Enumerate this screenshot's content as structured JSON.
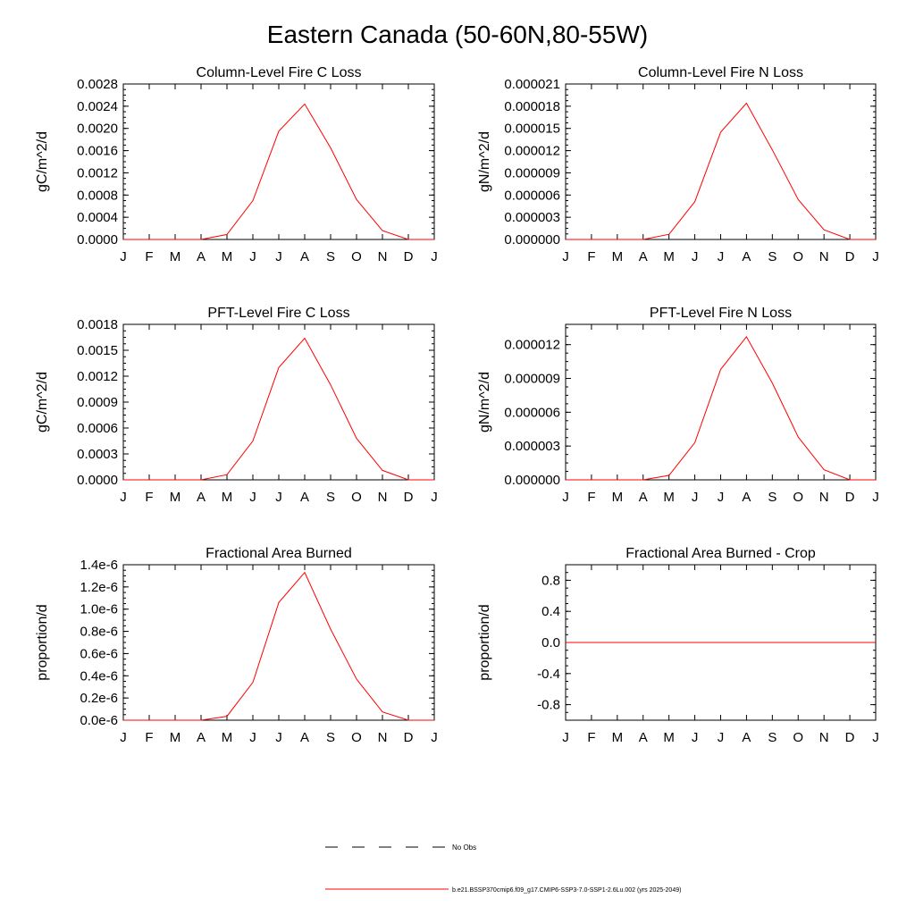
{
  "figure": {
    "title": "Eastern Canada (50-60N,80-55W)"
  },
  "colors": {
    "model_line": "#ff0000",
    "obs_line": "#000000",
    "axis": "#000000"
  },
  "legend": {
    "placement": "bottom-center",
    "entries": [
      {
        "label": "No Obs",
        "style": "dashed",
        "color": "#000000"
      },
      {
        "label": "b.e21.BSSP370cmip6.f09_g17.CMIP6-SSP3-7.0-SSP1-2.6Lu.002 (yrs 2025-2049)",
        "style": "solid",
        "color": "#ff0000"
      }
    ]
  },
  "chart_data": [
    {
      "type": "line",
      "title": "Column-Level Fire C Loss",
      "ylabel": "gC/m^2/d",
      "categories": [
        "J",
        "F",
        "M",
        "A",
        "M",
        "J",
        "J",
        "A",
        "S",
        "O",
        "N",
        "D",
        "J"
      ],
      "ylim": [
        0,
        0.0028
      ],
      "yticks": [
        0,
        0.0004,
        0.0008,
        0.0012,
        0.0016,
        0.002,
        0.0024,
        0.0028
      ],
      "ytick_labels": [
        "0.0000",
        "0.0004",
        "0.0008",
        "0.0012",
        "0.0016",
        "0.0020",
        "0.0024",
        "0.0028"
      ],
      "series": [
        {
          "values": [
            0,
            0,
            0,
            0,
            9e-05,
            0.0007,
            0.00195,
            0.00244,
            0.00165,
            0.00072,
            0.00016,
            0,
            0
          ]
        }
      ]
    },
    {
      "type": "line",
      "title": "Column-Level Fire N Loss",
      "ylabel": "gN/m^2/d",
      "categories": [
        "J",
        "F",
        "M",
        "A",
        "M",
        "J",
        "J",
        "A",
        "S",
        "O",
        "N",
        "D",
        "J"
      ],
      "ylim": [
        0,
        2.1e-05
      ],
      "yticks": [
        0,
        3e-06,
        6e-06,
        9e-06,
        1.2e-05,
        1.5e-05,
        1.8e-05,
        2.1e-05
      ],
      "ytick_labels": [
        "0.000000",
        "0.000003",
        "0.000006",
        "0.000009",
        "0.000012",
        "0.000015",
        "0.000018",
        "0.000021"
      ],
      "series": [
        {
          "values": [
            0,
            0,
            0,
            0,
            7e-07,
            5.1e-06,
            1.45e-05,
            1.84e-05,
            1.21e-05,
            5.4e-06,
            1.3e-06,
            0,
            0
          ]
        }
      ]
    },
    {
      "type": "line",
      "title": "PFT-Level Fire C Loss",
      "ylabel": "gC/m^2/d",
      "categories": [
        "J",
        "F",
        "M",
        "A",
        "M",
        "J",
        "J",
        "A",
        "S",
        "O",
        "N",
        "D",
        "J"
      ],
      "ylim": [
        0,
        0.0018
      ],
      "yticks": [
        0,
        0.0003,
        0.0006,
        0.0009,
        0.0012,
        0.0015,
        0.0018
      ],
      "ytick_labels": [
        "0.0000",
        "0.0003",
        "0.0006",
        "0.0009",
        "0.0012",
        "0.0015",
        "0.0018"
      ],
      "series": [
        {
          "values": [
            0,
            0,
            0,
            0,
            6e-05,
            0.00045,
            0.0013,
            0.00164,
            0.0011,
            0.00048,
            0.00011,
            0,
            0
          ]
        }
      ]
    },
    {
      "type": "line",
      "title": "PFT-Level Fire N Loss",
      "ylabel": "gN/m^2/d",
      "categories": [
        "J",
        "F",
        "M",
        "A",
        "M",
        "J",
        "J",
        "A",
        "S",
        "O",
        "N",
        "D",
        "J"
      ],
      "ylim": [
        0,
        1.38e-05
      ],
      "yticks": [
        0,
        3e-06,
        6e-06,
        9e-06,
        1.2e-05
      ],
      "ytick_labels": [
        "0.000000",
        "0.000003",
        "0.000006",
        "0.000009",
        "0.000012"
      ],
      "series": [
        {
          "values": [
            0,
            0,
            0,
            0,
            4e-07,
            3.3e-06,
            9.8e-06,
            1.27e-05,
            8.6e-06,
            3.8e-06,
            9e-07,
            0,
            0
          ]
        }
      ]
    },
    {
      "type": "line",
      "title": "Fractional Area Burned",
      "ylabel": "proportion/d",
      "categories": [
        "J",
        "F",
        "M",
        "A",
        "M",
        "J",
        "J",
        "A",
        "S",
        "O",
        "N",
        "D",
        "J"
      ],
      "ylim": [
        0,
        1.4e-06
      ],
      "yticks": [
        0,
        2e-07,
        4e-07,
        6e-07,
        8e-07,
        1e-06,
        1.2e-06,
        1.4e-06
      ],
      "ytick_labels": [
        "0.0e-6",
        "0.2e-6",
        "0.4e-6",
        "0.6e-6",
        "0.8e-6",
        "1.0e-6",
        "1.2e-6",
        "1.4e-6"
      ],
      "series": [
        {
          "values": [
            0,
            0,
            0,
            0,
            3.5e-08,
            3.4e-07,
            1.06e-06,
            1.33e-06,
            8.2e-07,
            3.7e-07,
            7.5e-08,
            0,
            0
          ]
        }
      ]
    },
    {
      "type": "line",
      "title": "Fractional Area Burned - Crop",
      "ylabel": "proportion/d",
      "categories": [
        "J",
        "F",
        "M",
        "A",
        "M",
        "J",
        "J",
        "A",
        "S",
        "O",
        "N",
        "D",
        "J"
      ],
      "ylim": [
        -1,
        1
      ],
      "yticks": [
        -0.8,
        -0.4,
        0,
        0.4,
        0.8
      ],
      "ytick_labels": [
        "-0.8",
        "-0.4",
        "0.0",
        "0.4",
        "0.8"
      ],
      "series": [
        {
          "values": [
            0,
            0,
            0,
            0,
            0,
            0,
            0,
            0,
            0,
            0,
            0,
            0,
            0
          ]
        }
      ]
    }
  ]
}
